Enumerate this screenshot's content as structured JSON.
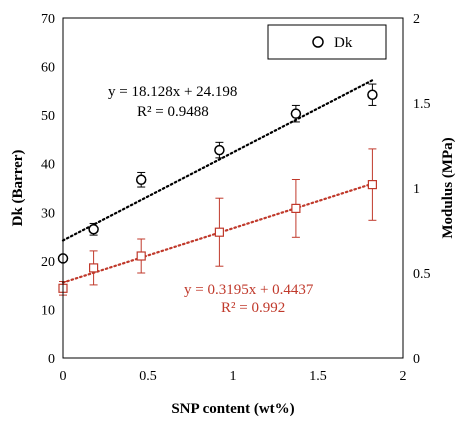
{
  "chart_data": {
    "type": "scatter",
    "xlabel": "SNP content (wt%)",
    "ylabel_left": "Dk (Barrer)",
    "ylabel_right": "Modulus (MPa)",
    "xlim": [
      0,
      2
    ],
    "ylim_left": [
      0,
      70
    ],
    "ylim_right": [
      0,
      2
    ],
    "x_ticks": [
      "0",
      "0.5",
      "1",
      "1.5",
      "2"
    ],
    "y_left_ticks": [
      "0",
      "10",
      "20",
      "30",
      "40",
      "50",
      "60",
      "70"
    ],
    "y_right_ticks": [
      "0",
      "0.5",
      "1",
      "1.5",
      "2"
    ],
    "grid": false,
    "legend": {
      "position": "top-right",
      "entries": [
        "Dk"
      ]
    },
    "colors": {
      "dk": "#000000",
      "modulus": "#c0392b"
    },
    "series": [
      {
        "name": "Dk",
        "axis": "left",
        "marker": "circle",
        "x": [
          0,
          0.18,
          0.46,
          0.92,
          1.37,
          1.82
        ],
        "y": [
          20.5,
          26.5,
          36.7,
          42.8,
          50.3,
          54.2
        ],
        "err": [
          0,
          1.2,
          1.5,
          1.6,
          1.7,
          2.2
        ],
        "trendline": {
          "slope": 18.128,
          "intercept": 24.198,
          "r2": 0.9488,
          "equation": "y = 18.128x + 24.198",
          "r2_label": "R² = 0.9488"
        }
      },
      {
        "axis": "right",
        "marker": "square",
        "x": [
          0,
          0.18,
          0.46,
          0.92,
          1.37,
          1.82
        ],
        "y": [
          0.41,
          0.53,
          0.6,
          0.74,
          0.88,
          1.02
        ],
        "err": [
          0.04,
          0.1,
          0.1,
          0.2,
          0.17,
          0.21
        ],
        "trendline": {
          "slope": 0.3195,
          "intercept": 0.4437,
          "r2": 0.992,
          "equation": "y = 0.3195x + 0.4437",
          "r2_label": "R² = 0.992"
        }
      }
    ]
  }
}
